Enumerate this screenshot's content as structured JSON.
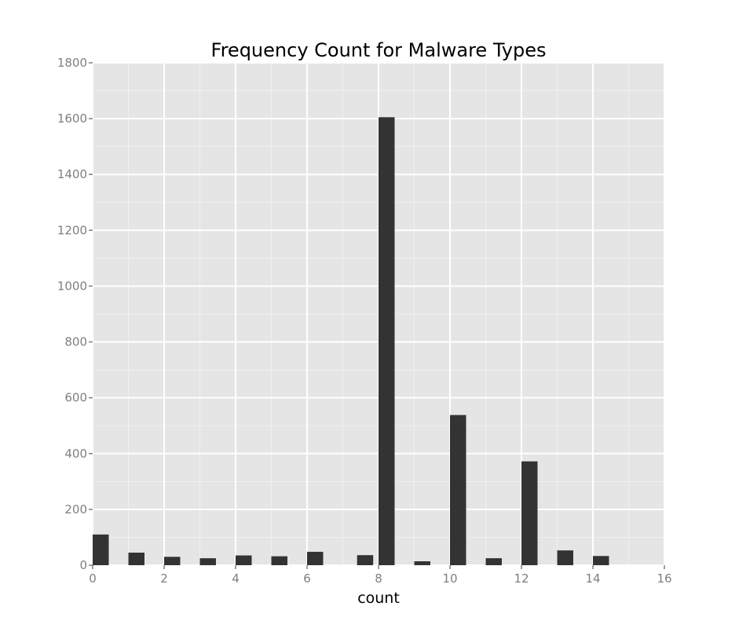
{
  "chart_data": {
    "type": "bar",
    "title": "Frequency Count for Malware Types",
    "xlabel": "count",
    "ylabel": "",
    "xlim": [
      0,
      16
    ],
    "ylim": [
      0,
      1800
    ],
    "x_ticks": [
      "0",
      "2",
      "4",
      "6",
      "8",
      "10",
      "12",
      "14",
      "16"
    ],
    "y_ticks": [
      "0",
      "200",
      "400",
      "600",
      "800",
      "1000",
      "1200",
      "1400",
      "1600",
      "1800"
    ],
    "bar_width": 0.45,
    "bars": [
      {
        "x": 0,
        "value": 110
      },
      {
        "x": 1,
        "value": 45
      },
      {
        "x": 2,
        "value": 30
      },
      {
        "x": 3,
        "value": 25
      },
      {
        "x": 4,
        "value": 35
      },
      {
        "x": 5,
        "value": 32
      },
      {
        "x": 6,
        "value": 48
      },
      {
        "x": 7.4,
        "value": 36
      },
      {
        "x": 8,
        "value": 1605
      },
      {
        "x": 9,
        "value": 14
      },
      {
        "x": 10,
        "value": 538
      },
      {
        "x": 11,
        "value": 25
      },
      {
        "x": 12,
        "value": 372
      },
      {
        "x": 13,
        "value": 53
      },
      {
        "x": 14,
        "value": 33
      }
    ],
    "grid": true,
    "colors": {
      "panel_background": "#e5e5e5",
      "grid_major": "#ffffff",
      "grid_minor": "#f0f0f0",
      "bar_fill": "#333333",
      "tick_color": "#7f7f7f"
    }
  }
}
